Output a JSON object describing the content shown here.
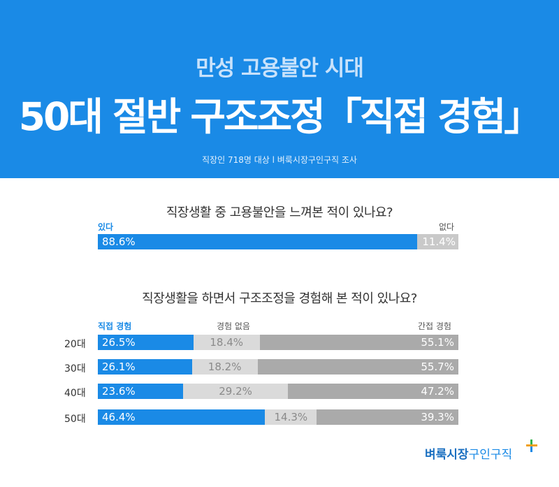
{
  "header": {
    "subtitle": "만성 고용불안 시대",
    "title": "50대 절반 구조조정「직접 경험」",
    "meta": "직장인 718명 대상  l  벼룩시장구인구직 조사"
  },
  "colors": {
    "blue": "#1a8ae6",
    "light_gray": "#dadada",
    "dark_gray": "#aaaaaa"
  },
  "chart_data": [
    {
      "type": "bar",
      "title": "직장생활 중 고용불안을 느껴본 적이 있나요?",
      "legend": [
        "있다",
        "없다"
      ],
      "series": [
        {
          "name": "있다",
          "values": [
            88.6
          ],
          "label": "88.6%"
        },
        {
          "name": "없다",
          "values": [
            11.4
          ],
          "label": "11.4%"
        }
      ],
      "stacked": true,
      "orientation": "horizontal"
    },
    {
      "type": "bar",
      "title": "직장생활을 하면서 구조조정을 경험해 본 적이 있나요?",
      "categories": [
        "20대",
        "30대",
        "40대",
        "50대"
      ],
      "series": [
        {
          "name": "직접 경험",
          "values": [
            26.5,
            26.1,
            23.6,
            46.4
          ],
          "labels": [
            "26.5%",
            "26.1%",
            "23.6%",
            "46.4%"
          ]
        },
        {
          "name": "경험 없음",
          "values": [
            18.4,
            18.2,
            29.2,
            14.3
          ],
          "labels": [
            "18.4%",
            "18.2%",
            "29.2%",
            "14.3%"
          ]
        },
        {
          "name": "간접 경험",
          "values": [
            55.1,
            55.7,
            47.2,
            39.3
          ],
          "labels": [
            "55.1%",
            "55.7%",
            "47.2%",
            "39.3%"
          ]
        }
      ],
      "stacked": true,
      "orientation": "horizontal"
    }
  ],
  "logo": {
    "part1": "벼룩시장",
    "part2": "구인구직",
    "icon": "plus-star-icon"
  }
}
